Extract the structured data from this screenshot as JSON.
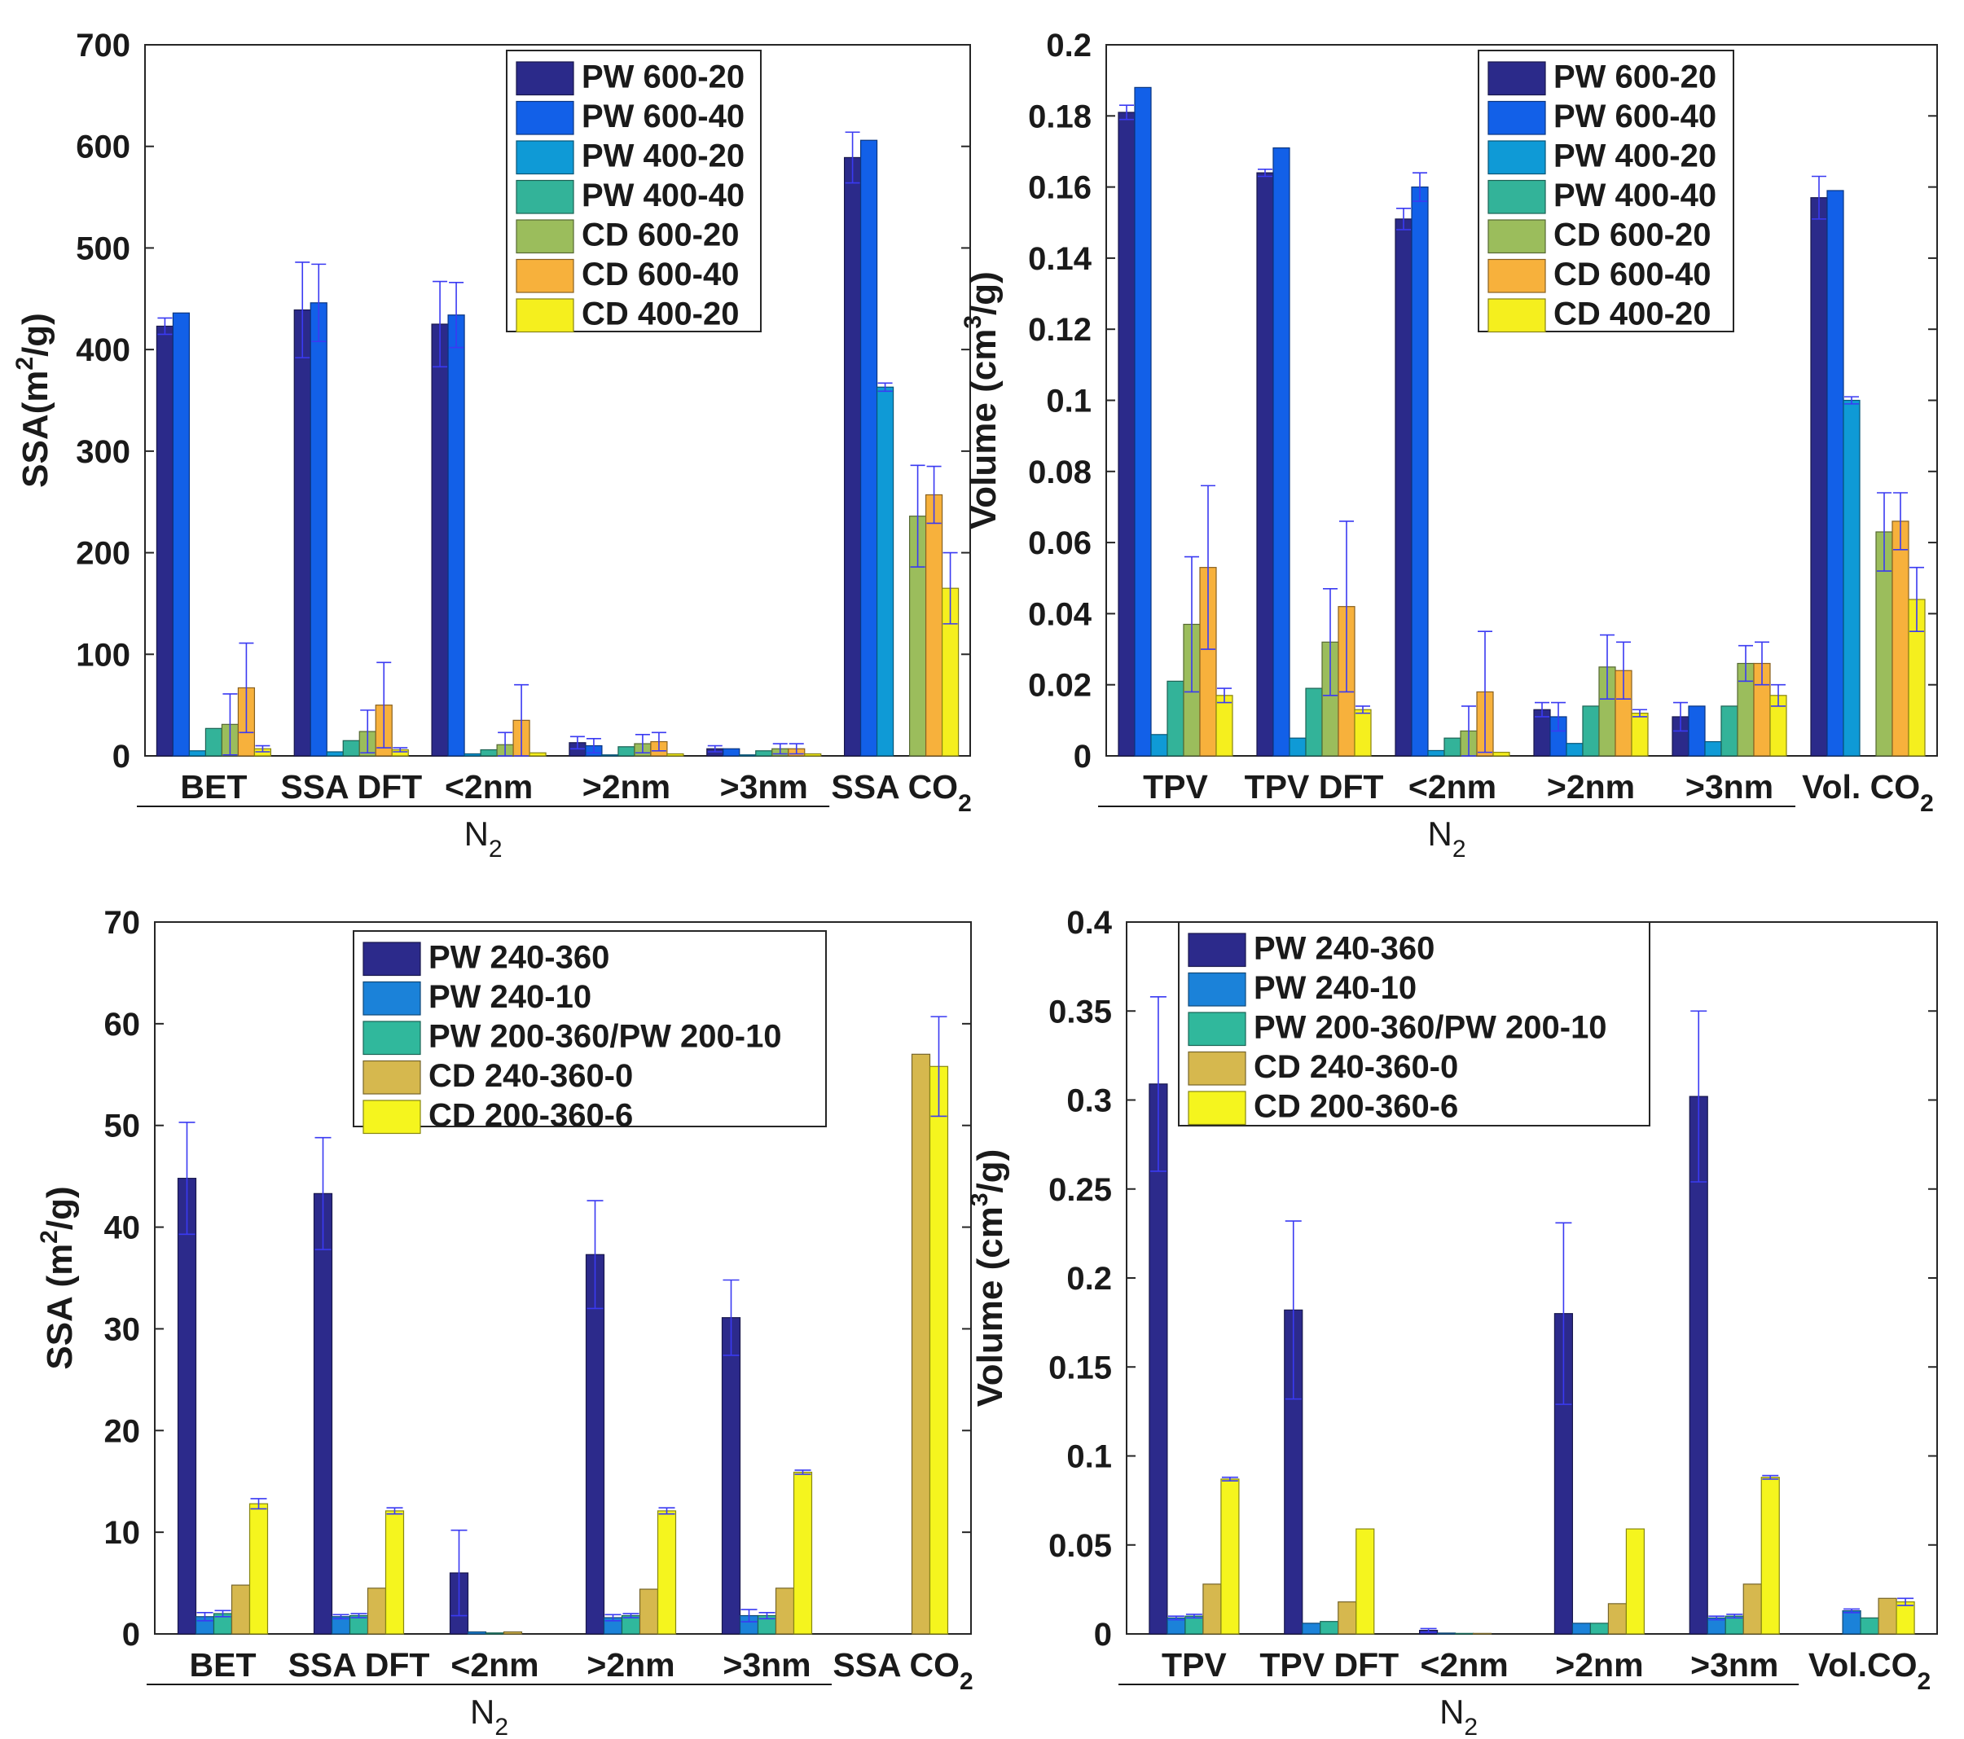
{
  "colors": {
    "pw_600_20": "#2b2a8a",
    "pw_600_40": "#1260e8",
    "pw_400_20": "#0f9ad6",
    "pw_400_40": "#33b399",
    "cd_600_20": "#9bbd5c",
    "cd_600_40": "#f7b13c",
    "cd_400_20": "#f5ef1e",
    "pw_240_360": "#2c2a8b",
    "pw_240_10": "#1b82d9",
    "pw_200": "#30b89c",
    "cd_240_360_0": "#d6b84e",
    "cd_200_360_6": "#f5f51e",
    "errorbar": "#3a3af2"
  },
  "chart_data": [
    {
      "id": "top-left",
      "type": "bar",
      "ylabel": "SSA(m2/g)",
      "ylabel_parts": [
        "SSA(m",
        "2",
        "/g)"
      ],
      "ylim": [
        0,
        700
      ],
      "yticks": [
        0,
        100,
        200,
        300,
        400,
        500,
        600,
        700
      ],
      "ytick_labels": [
        "0",
        "100",
        "200",
        "300",
        "400",
        "500",
        "600",
        "700"
      ],
      "categories": [
        "BET",
        "SSA DFT",
        "<2nm",
        ">2nm",
        ">3nm",
        "SSA CO2"
      ],
      "category_labels": [
        [
          "BET"
        ],
        [
          "SSA DFT"
        ],
        [
          "<2nm"
        ],
        [
          ">2nm"
        ],
        [
          ">3nm"
        ],
        [
          "SSA CO",
          "2"
        ]
      ],
      "group_label": [
        "N",
        "2"
      ],
      "group_span": [
        0,
        4
      ],
      "legend_position": "top-center",
      "series": [
        {
          "name": "PW 600-20",
          "color": "#2b2a8a",
          "values": [
            423,
            439,
            425,
            13,
            7,
            589
          ],
          "errors": [
            8,
            47,
            42,
            6,
            3,
            25
          ]
        },
        {
          "name": "PW 600-40",
          "color": "#1260e8",
          "values": [
            436,
            446,
            434,
            10,
            7,
            606
          ],
          "errors": [
            0,
            38,
            32,
            7,
            0,
            0
          ]
        },
        {
          "name": "PW 400-20",
          "color": "#0f9ad6",
          "values": [
            5,
            4,
            2,
            1,
            1,
            363
          ],
          "errors": [
            0,
            0,
            0,
            0,
            0,
            4
          ]
        },
        {
          "name": "PW 400-40",
          "color": "#33b399",
          "values": [
            27,
            15,
            6,
            9,
            5,
            0
          ],
          "errors": [
            0,
            0,
            0,
            0,
            0,
            0
          ]
        },
        {
          "name": "CD 600-20",
          "color": "#9bbd5c",
          "values": [
            31,
            24,
            11,
            12,
            7,
            236
          ],
          "errors": [
            30,
            21,
            12,
            9,
            5,
            50
          ]
        },
        {
          "name": "CD 600-40",
          "color": "#f7b13c",
          "values": [
            67,
            50,
            35,
            14,
            7,
            257
          ],
          "errors": [
            44,
            42,
            35,
            9,
            5,
            28
          ]
        },
        {
          "name": "CD 400-20",
          "color": "#f5ef1e",
          "values": [
            7,
            6,
            3,
            2,
            2,
            165
          ],
          "errors": [
            3,
            2,
            0,
            0,
            0,
            35
          ]
        }
      ]
    },
    {
      "id": "top-right",
      "type": "bar",
      "ylabel": "Volume (cm3/g)",
      "ylabel_parts": [
        "Volume (cm",
        "3",
        "/g)"
      ],
      "ylim": [
        0,
        0.2
      ],
      "yticks": [
        0,
        0.02,
        0.04,
        0.06,
        0.08,
        0.1,
        0.12,
        0.14,
        0.16,
        0.18,
        0.2
      ],
      "ytick_labels": [
        "0",
        "0.02",
        "0.04",
        "0.06",
        "0.08",
        "0.1",
        "0.12",
        "0.14",
        "0.16",
        "0.18",
        "0.2"
      ],
      "categories": [
        "TPV",
        "TPV DFT",
        "<2nm",
        ">2nm",
        ">3nm",
        "Vol. CO2"
      ],
      "category_labels": [
        [
          "TPV"
        ],
        [
          "TPV DFT"
        ],
        [
          "<2nm"
        ],
        [
          ">2nm"
        ],
        [
          ">3nm"
        ],
        [
          "Vol. CO",
          "2"
        ]
      ],
      "group_label": [
        "N",
        "2"
      ],
      "group_span": [
        0,
        4
      ],
      "legend_position": "top-center",
      "series": [
        {
          "name": "PW 600-20",
          "color": "#2b2a8a",
          "values": [
            0.181,
            0.164,
            0.151,
            0.013,
            0.011,
            0.157
          ],
          "errors": [
            0.002,
            0.001,
            0.003,
            0.002,
            0.004,
            0.006
          ]
        },
        {
          "name": "PW 600-40",
          "color": "#1260e8",
          "values": [
            0.188,
            0.171,
            0.16,
            0.011,
            0.014,
            0.159
          ],
          "errors": [
            0,
            0,
            0.004,
            0.004,
            0,
            0
          ]
        },
        {
          "name": "PW 400-20",
          "color": "#0f9ad6",
          "values": [
            0.006,
            0.005,
            0.0015,
            0.0035,
            0.004,
            0.1
          ],
          "errors": [
            0,
            0,
            0,
            0,
            0,
            0.001
          ]
        },
        {
          "name": "PW 400-40",
          "color": "#33b399",
          "values": [
            0.021,
            0.019,
            0.005,
            0.014,
            0.014,
            0
          ],
          "errors": [
            0,
            0,
            0,
            0,
            0,
            0
          ]
        },
        {
          "name": "CD 600-20",
          "color": "#9bbd5c",
          "values": [
            0.037,
            0.032,
            0.007,
            0.025,
            0.026,
            0.063
          ],
          "errors": [
            0.019,
            0.015,
            0.007,
            0.009,
            0.005,
            0.011
          ]
        },
        {
          "name": "CD 600-40",
          "color": "#f7b13c",
          "values": [
            0.053,
            0.042,
            0.018,
            0.024,
            0.026,
            0.066
          ],
          "errors": [
            0.023,
            0.024,
            0.017,
            0.008,
            0.006,
            0.008
          ]
        },
        {
          "name": "CD 400-20",
          "color": "#f5ef1e",
          "values": [
            0.017,
            0.013,
            0.001,
            0.012,
            0.017,
            0.044
          ],
          "errors": [
            0.002,
            0.001,
            0,
            0.001,
            0.003,
            0.009
          ]
        }
      ]
    },
    {
      "id": "bottom-left",
      "type": "bar",
      "ylabel": "SSA (m2/g)",
      "ylabel_parts": [
        "SSA (m",
        "2",
        "/g)"
      ],
      "ylim": [
        0,
        70
      ],
      "yticks": [
        0,
        10,
        20,
        30,
        40,
        50,
        60,
        70
      ],
      "ytick_labels": [
        "0",
        "10",
        "20",
        "30",
        "40",
        "50",
        "60",
        "70"
      ],
      "categories": [
        "BET",
        "SSA DFT",
        "<2nm",
        ">2nm",
        ">3nm",
        "SSA CO2"
      ],
      "category_labels": [
        [
          "BET"
        ],
        [
          "SSA DFT"
        ],
        [
          "<2nm"
        ],
        [
          ">2nm"
        ],
        [
          ">3nm"
        ],
        [
          "SSA CO",
          "2"
        ]
      ],
      "group_label": [
        "N",
        "2"
      ],
      "group_span": [
        0,
        4
      ],
      "legend_position": "top-center",
      "series": [
        {
          "name": "PW 240-360",
          "color": "#2c2a8b",
          "values": [
            44.8,
            43.3,
            6,
            37.3,
            31.1,
            0
          ],
          "errors": [
            5.5,
            5.5,
            4.2,
            5.3,
            3.7,
            0
          ]
        },
        {
          "name": "PW 240-10",
          "color": "#1b82d9",
          "values": [
            1.7,
            1.7,
            0.2,
            1.6,
            1.8,
            0
          ],
          "errors": [
            0.4,
            0.2,
            0,
            0.3,
            0.6,
            0
          ]
        },
        {
          "name": "PW 200-360/PW 200-10",
          "color": "#30b89c",
          "values": [
            2,
            1.8,
            0.1,
            1.8,
            1.8,
            0
          ],
          "errors": [
            0.3,
            0.2,
            0,
            0.2,
            0.3,
            0
          ]
        },
        {
          "name": "CD 240-360-0",
          "color": "#d6b84e",
          "values": [
            4.8,
            4.5,
            0.2,
            4.4,
            4.5,
            57
          ],
          "errors": [
            0,
            0,
            0,
            0,
            0,
            0
          ]
        },
        {
          "name": "CD 200-360-6",
          "color": "#f5f51e",
          "values": [
            12.8,
            12.1,
            0,
            12.1,
            15.9,
            55.8
          ],
          "errors": [
            0.5,
            0.3,
            0,
            0.3,
            0.2,
            4.9
          ]
        }
      ]
    },
    {
      "id": "bottom-right",
      "type": "bar",
      "ylabel": "Volume (cm3/g)",
      "ylabel_parts": [
        "Volume (cm",
        "3",
        "/g)"
      ],
      "ylim": [
        0,
        0.4
      ],
      "yticks": [
        0,
        0.05,
        0.1,
        0.15,
        0.2,
        0.25,
        0.3,
        0.35,
        0.4
      ],
      "ytick_labels": [
        "0",
        "0.05",
        "0.1",
        "0.15",
        "0.2",
        "0.25",
        "0.3",
        "0.35",
        "0.4"
      ],
      "categories": [
        "TPV",
        "TPV DFT",
        "<2nm",
        ">2nm",
        ">3nm",
        "Vol.CO2"
      ],
      "category_labels": [
        [
          "TPV"
        ],
        [
          "TPV DFT"
        ],
        [
          "<2nm"
        ],
        [
          ">2nm"
        ],
        [
          ">3nm"
        ],
        [
          "Vol.CO",
          "2"
        ]
      ],
      "group_label": [
        "N",
        "2"
      ],
      "group_span": [
        0,
        4
      ],
      "legend_position": "top-left",
      "series": [
        {
          "name": "PW 240-360",
          "color": "#2c2a8b",
          "values": [
            0.309,
            0.182,
            0.002,
            0.18,
            0.302,
            0
          ],
          "errors": [
            0.049,
            0.05,
            0.001,
            0.051,
            0.048,
            0
          ]
        },
        {
          "name": "PW 240-10",
          "color": "#1b82d9",
          "values": [
            0.009,
            0.006,
            0.0005,
            0.006,
            0.009,
            0.013
          ],
          "errors": [
            0.001,
            0,
            0,
            0,
            0.001,
            0.001
          ]
        },
        {
          "name": "PW 200-360/PW 200-10",
          "color": "#30b89c",
          "values": [
            0.01,
            0.007,
            0.0003,
            0.006,
            0.01,
            0.009
          ],
          "errors": [
            0.001,
            0,
            0,
            0,
            0.001,
            0
          ]
        },
        {
          "name": "CD 240-360-0",
          "color": "#d6b84e",
          "values": [
            0.028,
            0.018,
            0.0003,
            0.017,
            0.028,
            0.02
          ],
          "errors": [
            0,
            0,
            0,
            0,
            0,
            0
          ]
        },
        {
          "name": "CD 200-360-6",
          "color": "#f5f51e",
          "values": [
            0.087,
            0.059,
            0,
            0.059,
            0.088,
            0.018
          ],
          "errors": [
            0.001,
            0,
            0,
            0,
            0.001,
            0.002
          ]
        }
      ]
    }
  ]
}
